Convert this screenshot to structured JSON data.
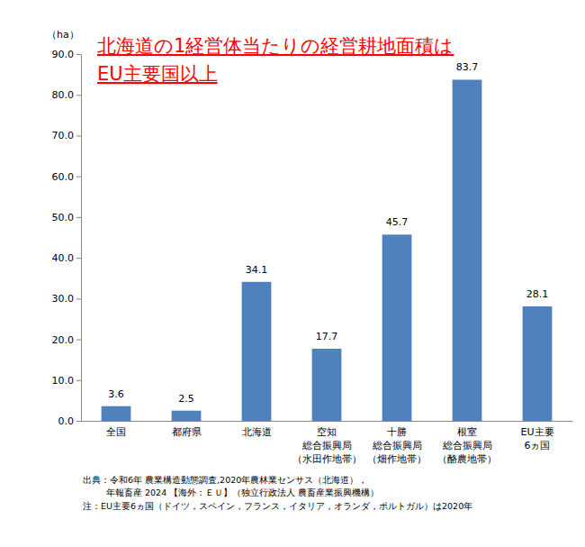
{
  "chart_data": {
    "type": "bar",
    "title": "北海道の1経営体当たりの経営耕地面積は\nEU主要国以上",
    "y_label": "（ha）",
    "categories": [
      "全国",
      "都府県",
      "北海道",
      "空知\n総合振興局\n（水田作地帯）",
      "十勝\n総合振興局\n（畑作地帯）",
      "根室\n総合振興局\n（酪農地帯）",
      "EU主要\n6ヵ国"
    ],
    "values": [
      3.6,
      2.5,
      34.1,
      17.7,
      45.7,
      83.7,
      28.1
    ],
    "color": "#4f81bd",
    "ylim": [
      0,
      90
    ],
    "yticks": [
      {
        "value": 0,
        "label": "0.0"
      },
      {
        "value": 10,
        "label": "10.0"
      },
      {
        "value": 20,
        "label": "20.0"
      },
      {
        "value": 30,
        "label": "30.0"
      },
      {
        "value": 40,
        "label": "40.0"
      },
      {
        "value": 50,
        "label": "50.0"
      },
      {
        "value": 60,
        "label": "60.0"
      },
      {
        "value": 70,
        "label": "70.0"
      },
      {
        "value": 80,
        "label": "80.0"
      },
      {
        "value": 90,
        "label": "90.0"
      }
    ],
    "grid": false,
    "data_labels": true,
    "notes": [
      "出典：令和6年 農業構造動態調査,2020年農林業センサス（北海道），",
      "年報畜産 2024 【海外：ＥＵ】（独立行政法人 農畜産業振興機構）",
      "注：EU主要6ヵ国（ドイツ，スペイン，フランス，イタリア，オランダ，ポルトガル）は2020年"
    ]
  }
}
